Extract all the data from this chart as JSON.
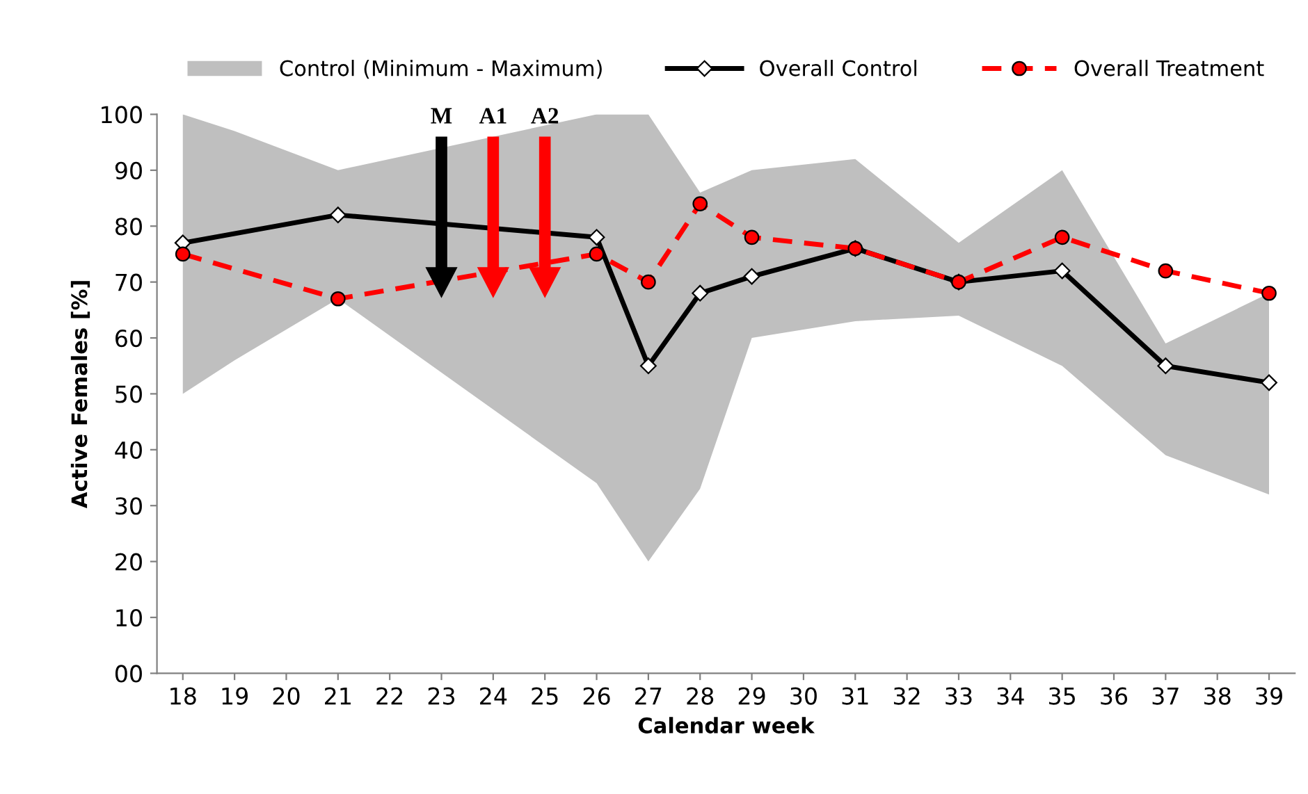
{
  "chart_data": {
    "type": "line",
    "xlabel": "Calendar week",
    "ylabel": "Active Females [%]",
    "xlim": [
      17.5,
      39.5
    ],
    "xticks": [
      18,
      19,
      20,
      21,
      22,
      23,
      24,
      25,
      26,
      27,
      28,
      29,
      30,
      31,
      32,
      33,
      34,
      35,
      36,
      37,
      38,
      39
    ],
    "ylim": [
      0,
      100
    ],
    "yticks": [
      {
        "value": 0,
        "label": "00"
      },
      10,
      20,
      30,
      40,
      50,
      60,
      70,
      80,
      90,
      100
    ],
    "grid": false,
    "legend": "top",
    "series": [
      {
        "name": "Control (Minimum - Maximum)",
        "type": "area",
        "color": "#bfbfbf",
        "x": [
          18,
          19,
          21,
          26,
          27,
          28,
          29,
          31,
          33,
          35,
          37,
          39
        ],
        "values": [
          null,
          null,
          null,
          null,
          null,
          null,
          null,
          null,
          null,
          null,
          null,
          null
        ],
        "upper": [
          100,
          97,
          90,
          100,
          100,
          86,
          90,
          92,
          77,
          90,
          59,
          68
        ],
        "lower": [
          50,
          56,
          67,
          34,
          20,
          33,
          60,
          63,
          64,
          55,
          39,
          32
        ]
      },
      {
        "name": "Overall Control",
        "color": "#000000",
        "marker": "diamond",
        "line_style": "solid",
        "x": [
          18,
          21,
          26,
          27,
          28,
          29,
          31,
          33,
          35,
          37,
          39
        ],
        "values": [
          77,
          82,
          78,
          55,
          68,
          71,
          76,
          70,
          72,
          55,
          52
        ]
      },
      {
        "name": "Overall Treatment",
        "color": "#ff0000",
        "marker": "circle",
        "line_style": "dashed",
        "x": [
          18,
          21,
          26,
          27,
          28,
          29,
          31,
          33,
          35,
          37,
          39
        ],
        "values": [
          75,
          67,
          75,
          70,
          84,
          78,
          76,
          70,
          78,
          72,
          68
        ]
      }
    ],
    "ref_lines": [
      {
        "axis": "x",
        "value": 23,
        "label": "M",
        "color": "#000000"
      },
      {
        "axis": "x",
        "value": 24,
        "label": "A1",
        "color": "#ff0000"
      },
      {
        "axis": "x",
        "value": 25,
        "label": "A2",
        "color": "#ff0000"
      }
    ]
  }
}
